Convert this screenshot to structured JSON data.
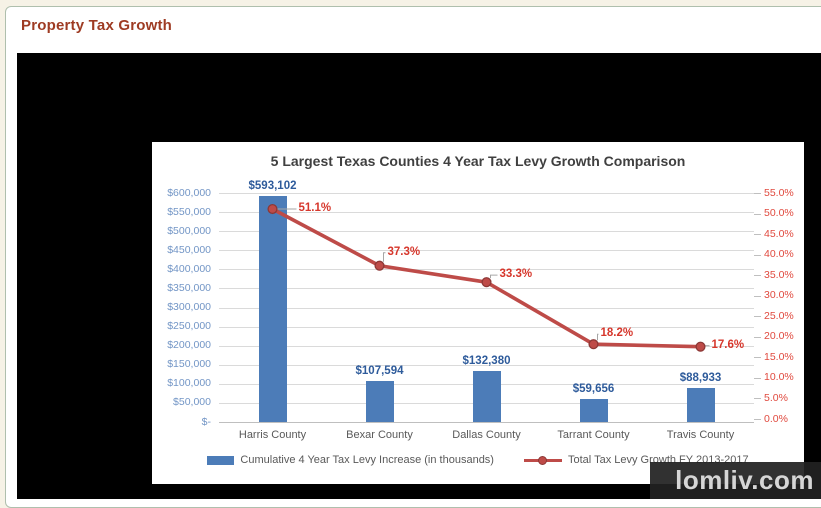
{
  "page": {
    "title": "Property Tax Growth"
  },
  "watermark": "lomliv.com",
  "colors": {
    "bar": "#4C7CB8",
    "line": "#BE4B48",
    "line_marker_border": "#8C3836",
    "bar_value_label": "#2E5B9B",
    "line_value_label": "#D6362B",
    "left_axis_label": "#7396C6",
    "right_axis_label": "#E04A3F",
    "page_title": "#9E3B23"
  },
  "chart_data": {
    "type": "bar",
    "subtype": "combo bar + line, dual axis",
    "title": "5 Largest Texas Counties 4 Year Tax Levy Growth Comparison",
    "categories": [
      "Harris County",
      "Bexar County",
      "Dallas County",
      "Tarrant County",
      "Travis County"
    ],
    "series": [
      {
        "name": "Cumulative 4 Year Tax Levy Increase (in thousands)",
        "type": "bar",
        "axis": "left",
        "values": [
          593102,
          107594,
          132380,
          59656,
          88933
        ],
        "data_labels": [
          "$593,102",
          "$107,594",
          "$132,380",
          "$59,656",
          "$88,933"
        ]
      },
      {
        "name": "Total Tax Levy Growth FY 2013-2017",
        "type": "line",
        "axis": "right",
        "values": [
          51.1,
          37.3,
          33.3,
          18.2,
          17.6
        ],
        "data_labels": [
          "51.1%",
          "37.3%",
          "33.3%",
          "18.2%",
          "17.6%"
        ]
      }
    ],
    "left_axis": {
      "min": 0,
      "max": 600000,
      "step": 50000,
      "ticks": [
        "$600,000",
        "$550,000",
        "$500,000",
        "$450,000",
        "$400,000",
        "$350,000",
        "$300,000",
        "$250,000",
        "$200,000",
        "$150,000",
        "$100,000",
        "$50,000",
        "$-"
      ]
    },
    "right_axis": {
      "min": 0,
      "max": 55,
      "step": 5,
      "ticks": [
        "55.0%",
        "50.0%",
        "45.0%",
        "40.0%",
        "35.0%",
        "30.0%",
        "25.0%",
        "20.0%",
        "15.0%",
        "10.0%",
        "5.0%",
        "0.0%"
      ]
    },
    "grid": true,
    "legend_position": "bottom"
  }
}
